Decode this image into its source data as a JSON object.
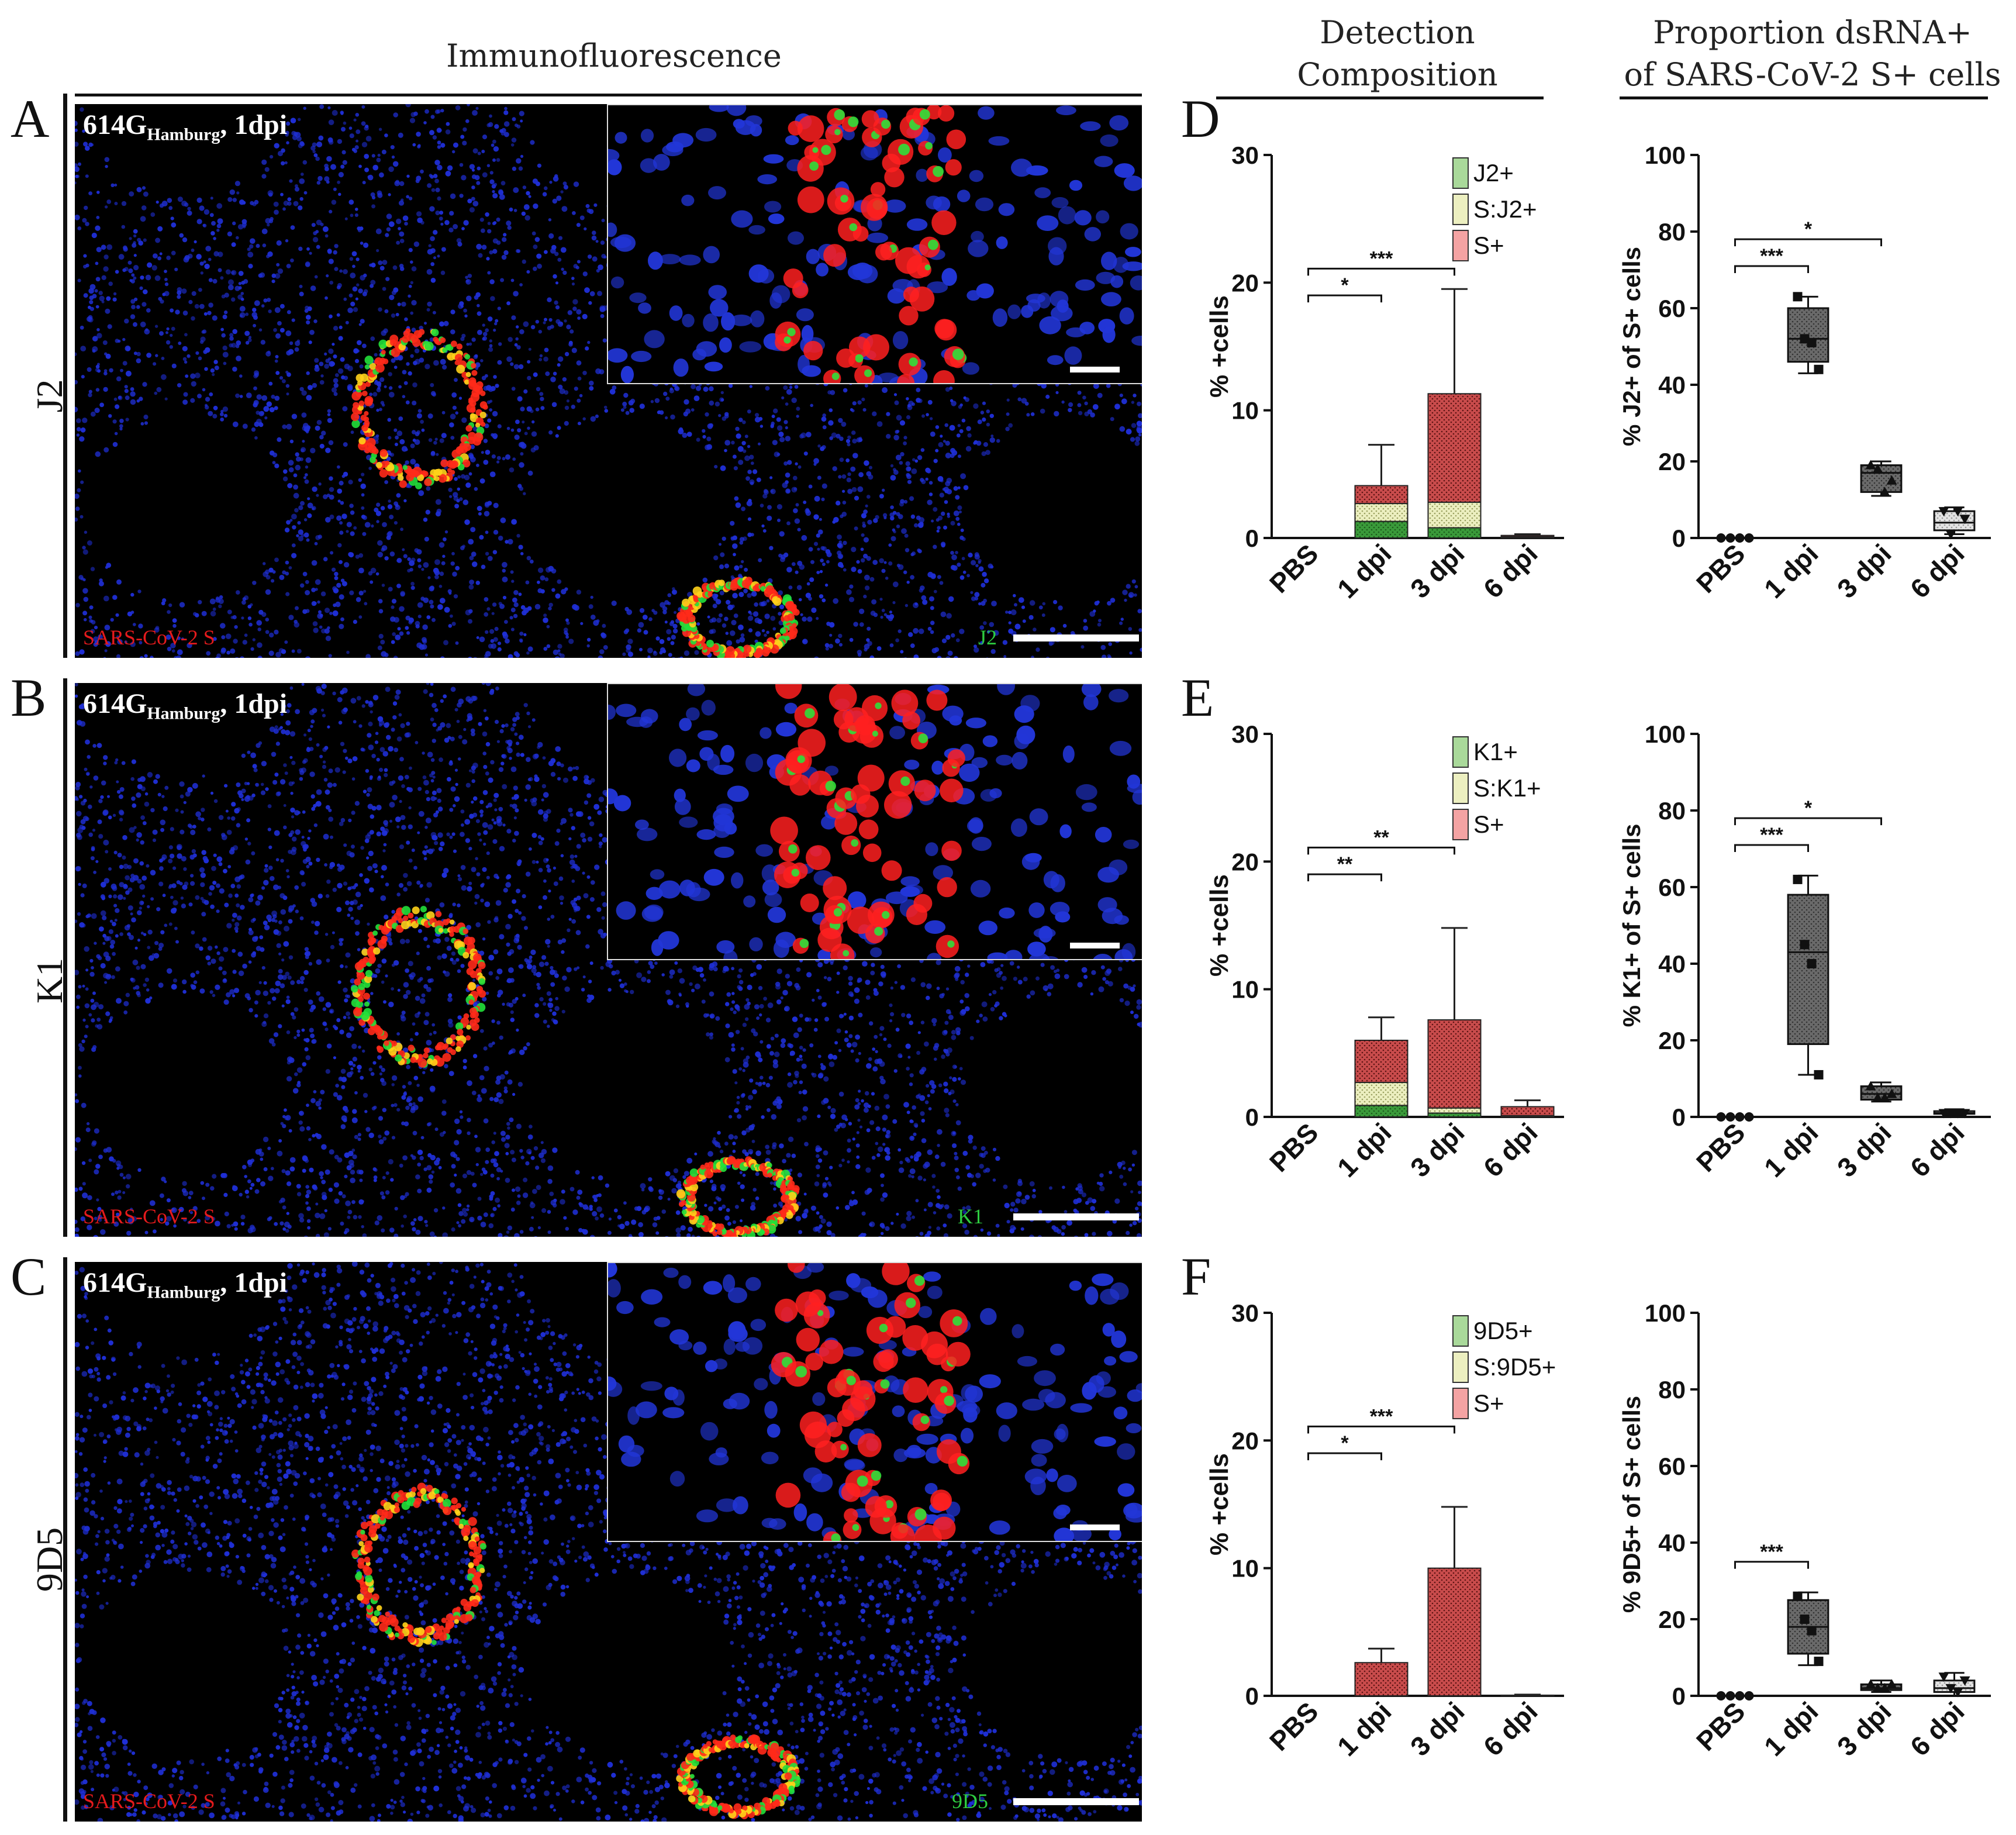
{
  "headers": {
    "immuno": "Immunofluorescence",
    "detection_l1": "Detection",
    "detection_l2": "Composition",
    "proportion_l1": "Proportion dsRNA+",
    "proportion_l2": "of SARS-CoV-2 S+ cells"
  },
  "panels": [
    {
      "letter": "A",
      "row_label": "J2",
      "title_main": "614G",
      "title_sub": "Hamburg",
      "title_end": ", 1dpi",
      "channel_red": "SARS-CoV-2 S",
      "channel_green": "J2"
    },
    {
      "letter": "B",
      "row_label": "K1",
      "title_main": "614G",
      "title_sub": "Hamburg",
      "title_end": ", 1dpi",
      "channel_red": "SARS-CoV-2 S",
      "channel_green": "K1"
    },
    {
      "letter": "C",
      "row_label": "9D5",
      "title_main": "614G",
      "title_sub": "Hamburg",
      "title_end": ", 1dpi",
      "channel_red": "SARS-CoV-2 S",
      "channel_green": "9D5"
    }
  ],
  "chart_letters": [
    "D",
    "E",
    "F"
  ],
  "colors": {
    "green": "#3a9a3a",
    "green_light": "#a9d99a",
    "cream": "#ecefc0",
    "red": "#c94c4c",
    "red_light": "#f4a3a3",
    "box_dark": "#555"
  },
  "chart_data": [
    {
      "type": "bar",
      "stacked": true,
      "ylabel": "% +cells",
      "ylim": [
        0,
        30
      ],
      "yticks": [
        0,
        10,
        20,
        30
      ],
      "categories": [
        "PBS",
        "1 dpi",
        "3 dpi",
        "6 dpi"
      ],
      "legend": [
        "J2+",
        "S:J2+",
        "S+"
      ],
      "series": [
        {
          "name": "J2+",
          "values": [
            0,
            1.3,
            0.8,
            0.05
          ]
        },
        {
          "name": "S:J2+",
          "values": [
            0,
            1.4,
            2.0,
            0.05
          ]
        },
        {
          "name": "S+",
          "values": [
            0,
            1.4,
            8.5,
            0.1
          ]
        }
      ],
      "error_tops": [
        0,
        7.3,
        19.5,
        0.3
      ],
      "significance": [
        {
          "from": "PBS",
          "to": "1 dpi",
          "label": "*"
        },
        {
          "from": "PBS",
          "to": "3 dpi",
          "label": "***"
        }
      ]
    },
    {
      "type": "box",
      "ylabel": "% J2+ of S+ cells",
      "ylim": [
        0,
        100
      ],
      "yticks": [
        0,
        20,
        40,
        60,
        80,
        100
      ],
      "categories": [
        "PBS",
        "1 dpi",
        "3 dpi",
        "6 dpi"
      ],
      "boxes": [
        {
          "min": 0,
          "q1": 0,
          "median": 0,
          "q3": 0,
          "max": 0,
          "points": [
            0,
            0,
            0,
            0
          ]
        },
        {
          "min": 43,
          "q1": 46,
          "median": 52,
          "q3": 60,
          "max": 63,
          "points": [
            63,
            52,
            51,
            44
          ]
        },
        {
          "min": 11,
          "q1": 12,
          "median": 17,
          "q3": 19,
          "max": 20,
          "points": [
            19,
            18,
            12,
            15
          ]
        },
        {
          "min": 1,
          "q1": 2,
          "median": 4,
          "q3": 7,
          "max": 8,
          "points": [
            7,
            1,
            7,
            5
          ]
        }
      ],
      "significance": [
        {
          "from": "PBS",
          "to": "1 dpi",
          "label": "***"
        },
        {
          "from": "PBS",
          "to": "3 dpi",
          "label": "*"
        }
      ]
    },
    {
      "type": "bar",
      "stacked": true,
      "ylabel": "% +cells",
      "ylim": [
        0,
        30
      ],
      "yticks": [
        0,
        10,
        20,
        30
      ],
      "categories": [
        "PBS",
        "1 dpi",
        "3 dpi",
        "6 dpi"
      ],
      "legend": [
        "K1+",
        "S:K1+",
        "S+"
      ],
      "series": [
        {
          "name": "K1+",
          "values": [
            0,
            0.9,
            0.3,
            0
          ]
        },
        {
          "name": "S:K1+",
          "values": [
            0,
            1.8,
            0.4,
            0.1
          ]
        },
        {
          "name": "S+",
          "values": [
            0,
            3.3,
            6.9,
            0.7
          ]
        }
      ],
      "error_tops": [
        0,
        7.8,
        14.8,
        1.3
      ],
      "significance": [
        {
          "from": "PBS",
          "to": "1 dpi",
          "label": "**"
        },
        {
          "from": "PBS",
          "to": "3 dpi",
          "label": "**"
        }
      ]
    },
    {
      "type": "box",
      "ylabel": "% K1+ of S+ cells",
      "ylim": [
        0,
        100
      ],
      "yticks": [
        0,
        20,
        40,
        60,
        80,
        100
      ],
      "categories": [
        "PBS",
        "1 dpi",
        "3 dpi",
        "6 dpi"
      ],
      "boxes": [
        {
          "min": 0,
          "q1": 0,
          "median": 0,
          "q3": 0,
          "max": 0,
          "points": [
            0,
            0,
            0,
            0
          ]
        },
        {
          "min": 11,
          "q1": 19,
          "median": 43,
          "q3": 58,
          "max": 63,
          "points": [
            62,
            45,
            40,
            11
          ]
        },
        {
          "min": 4,
          "q1": 4.5,
          "median": 6,
          "q3": 8,
          "max": 9,
          "points": [
            8,
            5,
            5,
            6
          ]
        },
        {
          "min": 0.5,
          "q1": 0.8,
          "median": 1,
          "q3": 1.5,
          "max": 2,
          "points": [
            1,
            1,
            1,
            1
          ]
        }
      ],
      "significance": [
        {
          "from": "PBS",
          "to": "1 dpi",
          "label": "***"
        },
        {
          "from": "PBS",
          "to": "3 dpi",
          "label": "*"
        }
      ]
    },
    {
      "type": "bar",
      "stacked": true,
      "ylabel": "% +cells",
      "ylim": [
        0,
        30
      ],
      "yticks": [
        0,
        10,
        20,
        30
      ],
      "categories": [
        "PBS",
        "1 dpi",
        "3 dpi",
        "6 dpi"
      ],
      "legend": [
        "9D5+",
        "S:9D5+",
        "S+"
      ],
      "series": [
        {
          "name": "9D5+",
          "values": [
            0,
            0,
            0,
            0
          ]
        },
        {
          "name": "S:9D5+",
          "values": [
            0,
            0,
            0,
            0
          ]
        },
        {
          "name": "S+",
          "values": [
            0,
            2.6,
            10.0,
            0.05
          ]
        }
      ],
      "error_tops": [
        0,
        3.7,
        14.8,
        0.1
      ],
      "significance": [
        {
          "from": "PBS",
          "to": "1 dpi",
          "label": "*"
        },
        {
          "from": "PBS",
          "to": "3 dpi",
          "label": "***"
        }
      ]
    },
    {
      "type": "box",
      "ylabel": "% 9D5+ of S+ cells",
      "ylim": [
        0,
        100
      ],
      "yticks": [
        0,
        20,
        40,
        60,
        80,
        100
      ],
      "categories": [
        "PBS",
        "1 dpi",
        "3 dpi",
        "6 dpi"
      ],
      "boxes": [
        {
          "min": 0,
          "q1": 0,
          "median": 0,
          "q3": 0,
          "max": 0,
          "points": [
            0,
            0,
            0,
            0
          ]
        },
        {
          "min": 8,
          "q1": 11,
          "median": 18,
          "q3": 25,
          "max": 27,
          "points": [
            26,
            20,
            17,
            9
          ]
        },
        {
          "min": 1,
          "q1": 1.5,
          "median": 2,
          "q3": 3,
          "max": 4,
          "points": [
            3,
            2,
            2,
            3
          ]
        },
        {
          "min": 0,
          "q1": 1,
          "median": 2,
          "q3": 4,
          "max": 6,
          "points": [
            5,
            2,
            1,
            4
          ]
        }
      ],
      "significance": [
        {
          "from": "PBS",
          "to": "1 dpi",
          "label": "***"
        }
      ]
    }
  ]
}
